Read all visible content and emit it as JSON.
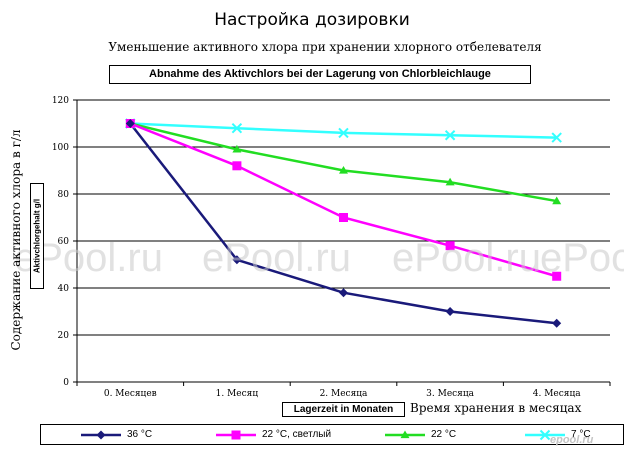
{
  "page": {
    "title": "Настройка дозировки",
    "watermarks": [
      "ePool.ru",
      "ePool.ru",
      "ePool.ru",
      "ePool.ru"
    ],
    "watermark_bottom": "epool.ru"
  },
  "chart_data": {
    "type": "line",
    "title": "Уменьшение активного хлора при хранении хлорного отбелевателя",
    "subtitle": "Abnahme des Aktivchlors bei der Lagerung von Chlorbleichlauge",
    "xlabel": "Время хранения в месяцах",
    "xlabel_boxed": "Lagerzeit in Monaten",
    "ylabel": "Содержание активного хлора в г/л",
    "ylabel_boxed": "Aktivchlorgehalt g/l",
    "categories": [
      "0. Месяцев",
      "1. Месяц",
      "2. Месяца",
      "3. Месяца",
      "4. Месяца"
    ],
    "ylim": [
      0,
      120
    ],
    "yticks": [
      0,
      20,
      40,
      60,
      80,
      100,
      120
    ],
    "grid": true,
    "legend_position": "bottom",
    "series": [
      {
        "name": "36 °C",
        "values": [
          110,
          52,
          38,
          30,
          25
        ],
        "color": "#1a1a7a",
        "marker": "diamond"
      },
      {
        "name": "22 °C, светлый",
        "values": [
          110,
          92,
          70,
          58,
          45
        ],
        "color": "#ff00ff",
        "marker": "square"
      },
      {
        "name": "22 °C",
        "values": [
          110,
          99,
          90,
          85,
          77
        ],
        "color": "#22dd22",
        "marker": "triangle"
      },
      {
        "name": "7 °C",
        "values": [
          110,
          108,
          106,
          105,
          104
        ],
        "color": "#33ffff",
        "marker": "x"
      }
    ]
  }
}
